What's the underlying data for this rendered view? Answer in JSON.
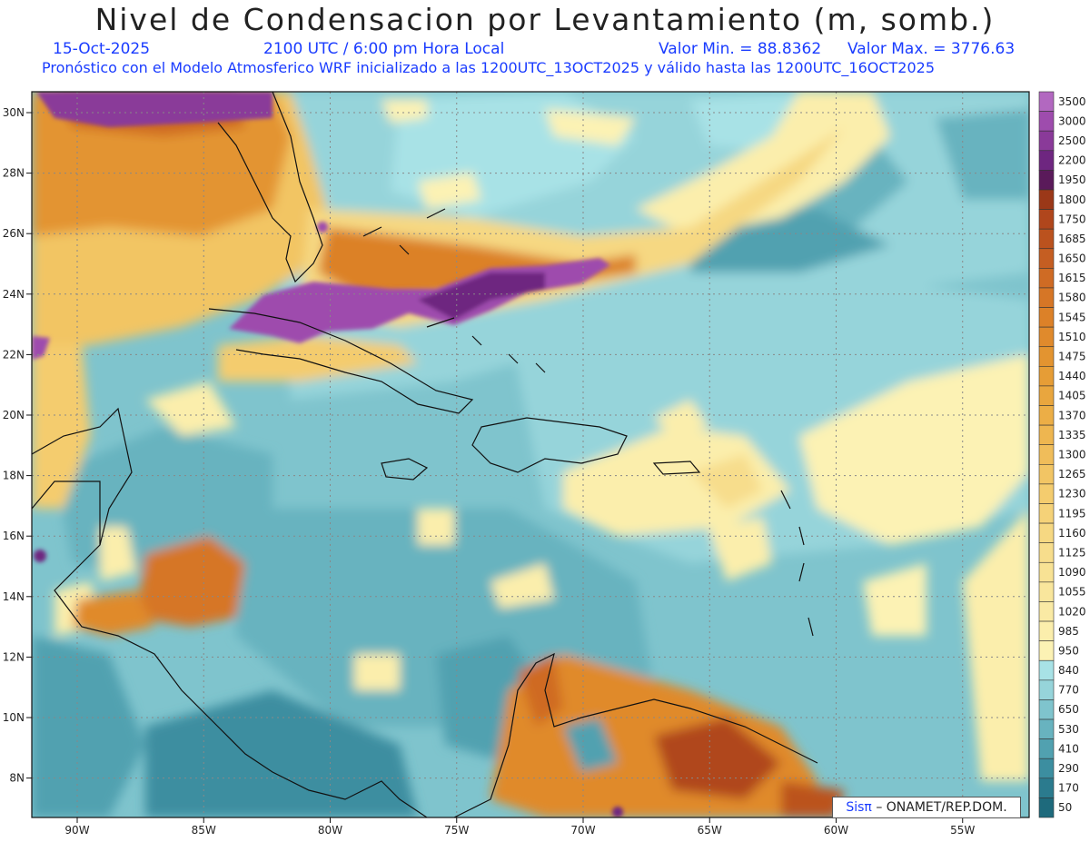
{
  "header": {
    "title": "Nivel de Condensacion por Levantamiento (m, somb.)",
    "date": "15-Oct-2025",
    "time": "2100 UTC / 6:00 pm Hora Local",
    "min_label": "Valor Min. = 88.8362",
    "max_label": "Valor Max. = 3776.63",
    "subtitle": "Pronóstico con el Modelo Atmosferico WRF inicializado a las 1200UTC_13OCT2025 y válido hasta las  1200UTC_16OCT2025"
  },
  "map": {
    "lon_labels": [
      "90W",
      "85W",
      "80W",
      "75W",
      "70W",
      "65W",
      "60W",
      "55W"
    ],
    "lat_labels": [
      "30N",
      "28N",
      "26N",
      "24N",
      "22N",
      "20N",
      "18N",
      "16N",
      "14N",
      "12N",
      "10N",
      "8N"
    ],
    "lon_values": [
      -90,
      -85,
      -80,
      -75,
      -70,
      -65,
      -60,
      -55
    ],
    "lat_values": [
      30,
      28,
      26,
      24,
      22,
      20,
      18,
      16,
      14,
      12,
      10,
      8
    ]
  },
  "legend": {
    "levels": [
      "3500",
      "3000",
      "2500",
      "2200",
      "1950",
      "1800",
      "1750",
      "1685",
      "1650",
      "1615",
      "1580",
      "1545",
      "1510",
      "1475",
      "1440",
      "1405",
      "1370",
      "1335",
      "1300",
      "1265",
      "1230",
      "1195",
      "1160",
      "1125",
      "1090",
      "1055",
      "1020",
      "985",
      "950",
      "840",
      "770",
      "650",
      "530",
      "410",
      "290",
      "170",
      "50"
    ],
    "colors": {
      "c3500": "#b268c0",
      "c3000": "#9e4cad",
      "c2500": "#8a3a99",
      "c2200": "#6e2680",
      "c1950": "#5a1a5a",
      "c1800": "#9b3818",
      "c1750": "#b0461c",
      "c1685": "#bb521e",
      "c1650": "#c55e22",
      "c1615": "#cf6b24",
      "c1580": "#d67626",
      "c1545": "#dc8128",
      "c1510": "#e08a2c",
      "c1475": "#e39430",
      "c1440": "#e69d36",
      "c1405": "#e9a63e",
      "c1370": "#ecae46",
      "c1335": "#eeb650",
      "c1300": "#f0bd5a",
      "c1265": "#f2c564",
      "c1230": "#f4cc6e",
      "c1195": "#f5d278",
      "c1160": "#f6d882",
      "c1125": "#f7dd8c",
      "c1090": "#f8e294",
      "c1055": "#f9e69c",
      "c1020": "#faeaa4",
      "c985": "#fbeeac",
      "c950": "#fcf2b4",
      "c840": "#a8e2e6",
      "c770": "#96d4da",
      "c650": "#7fc4cd",
      "c530": "#68b3bf",
      "c410": "#51a1b0",
      "c290": "#3c8ea0",
      "c170": "#2b7b8e",
      "c50": "#1e6a7c"
    }
  },
  "credit": {
    "sis": "Sis",
    "pi": "π",
    "org": "– ONAMET/REP.DOM."
  }
}
